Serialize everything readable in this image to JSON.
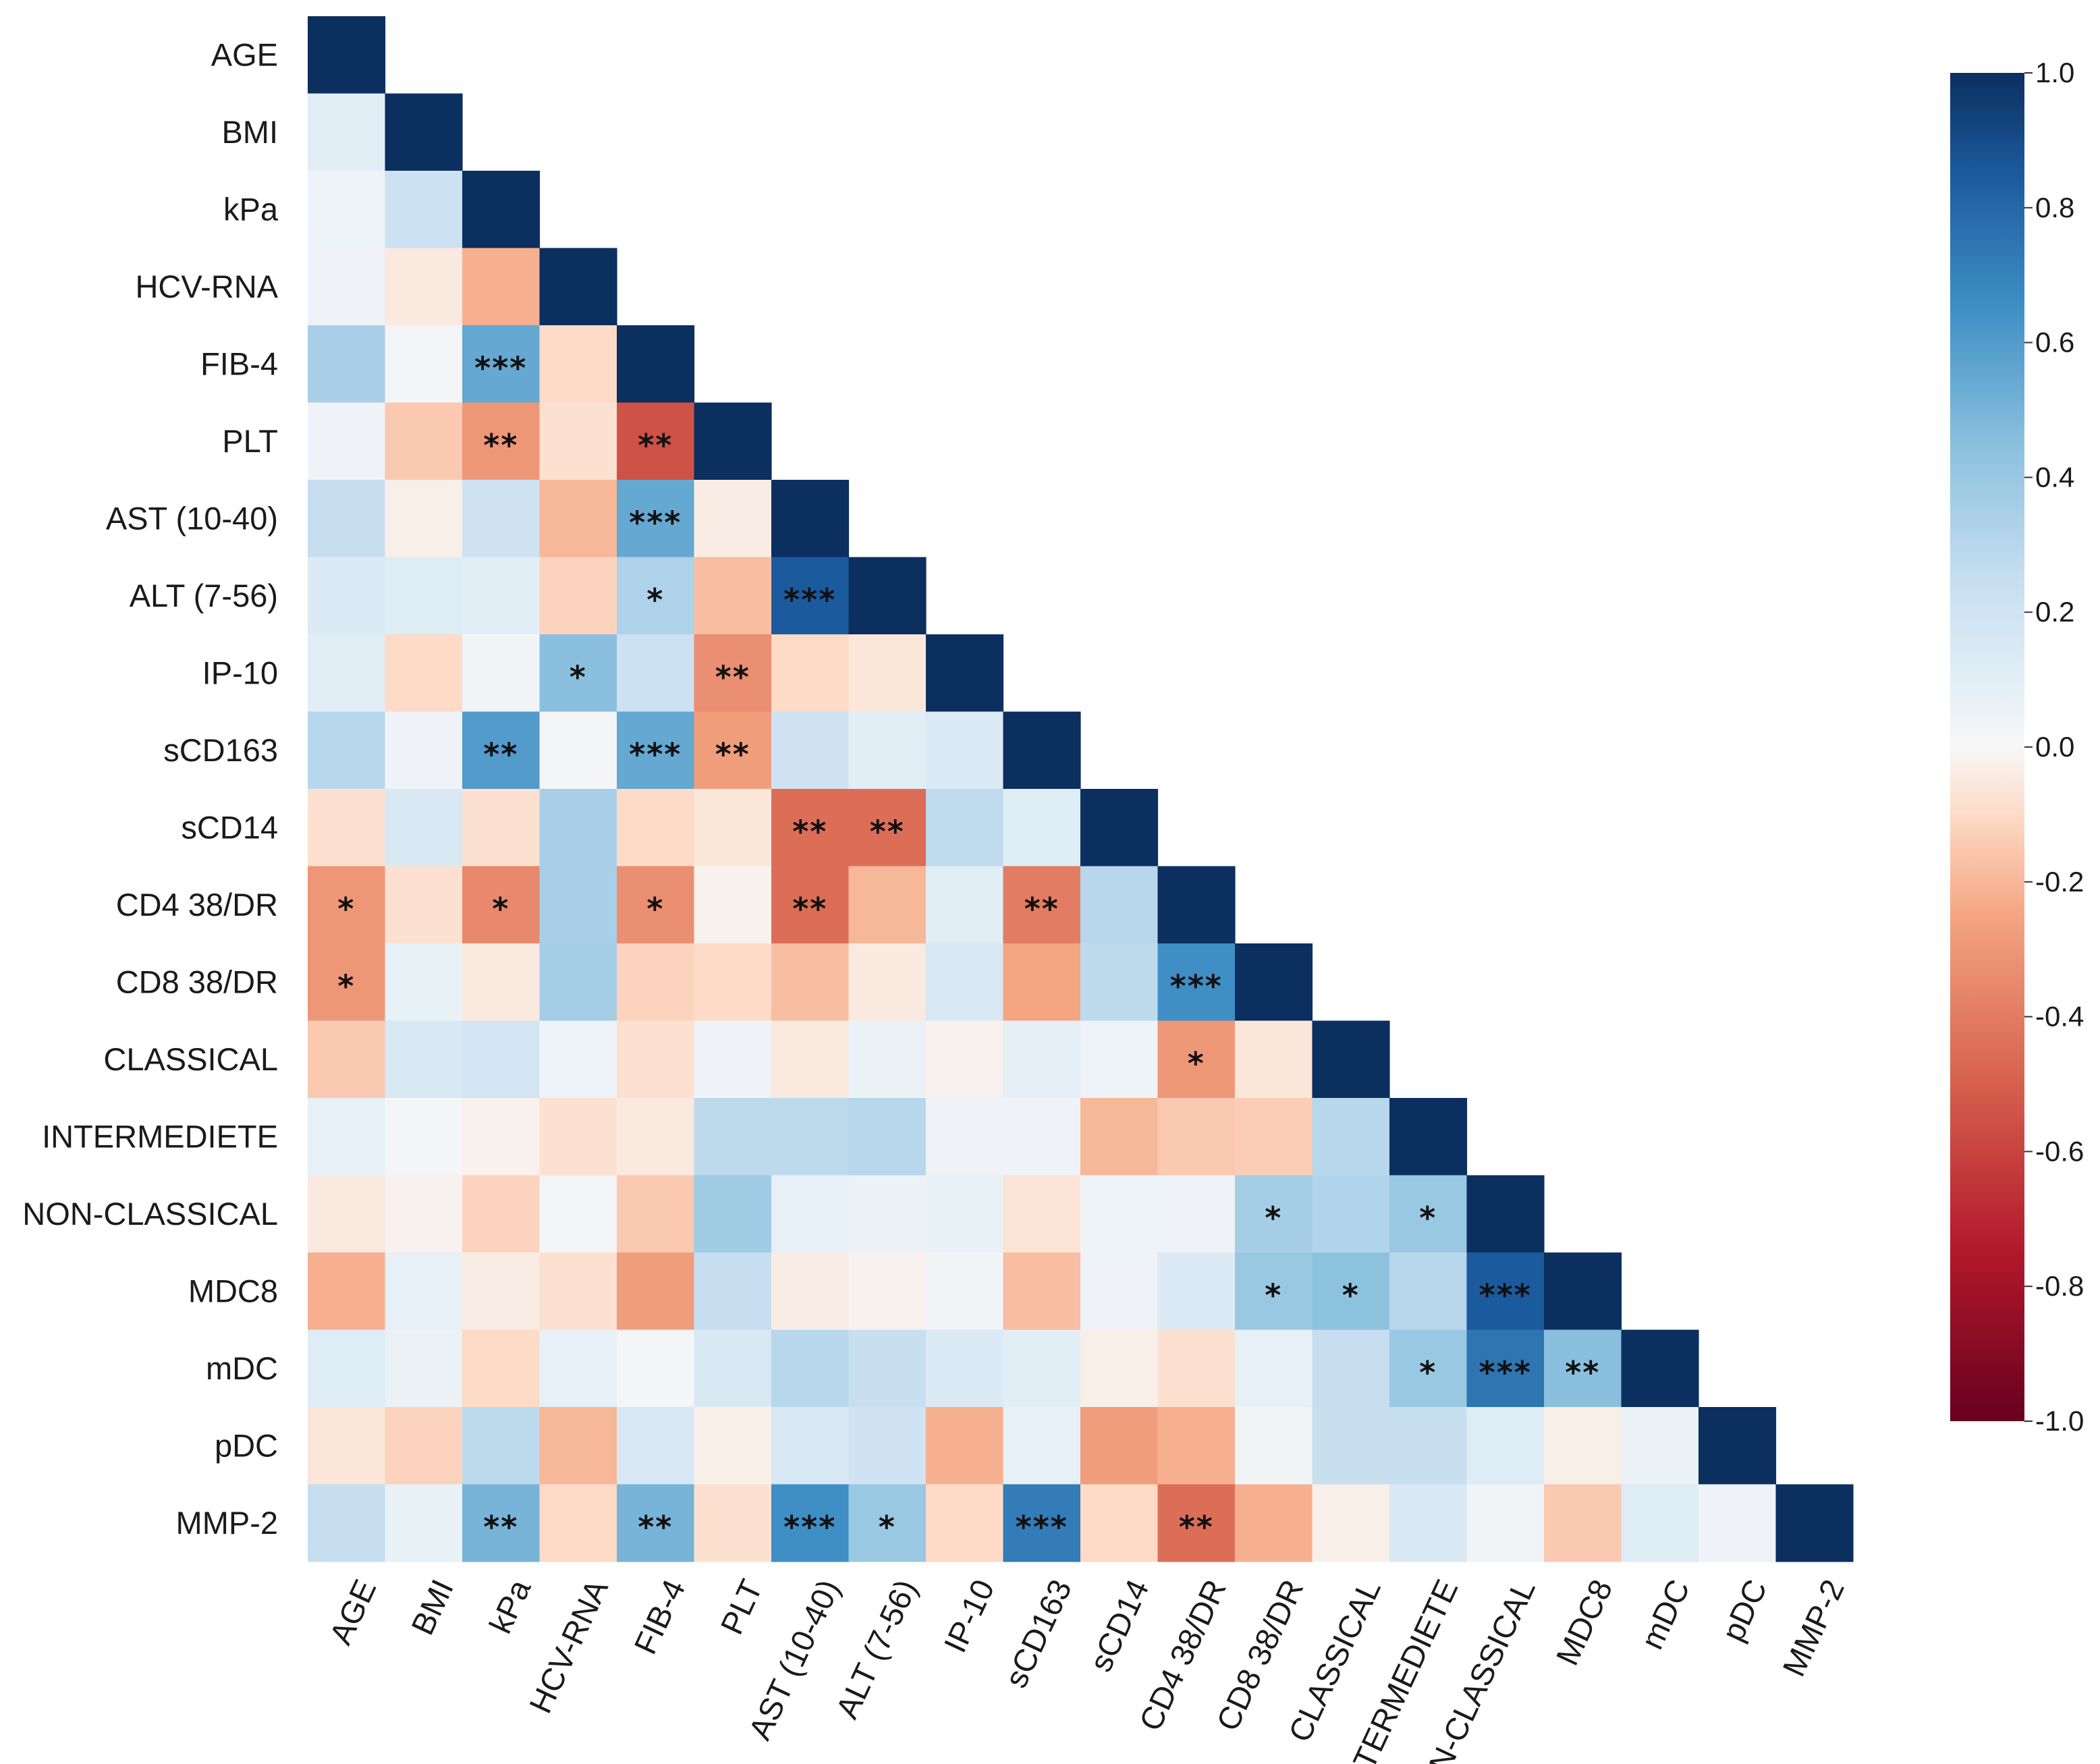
{
  "chart_data": {
    "type": "heatmap",
    "title": "",
    "xlabel": "",
    "ylabel": "",
    "variables": [
      "AGE",
      "BMI",
      "kPa",
      "HCV-RNA",
      "FIB-4",
      "PLT",
      "AST (10-40)",
      "ALT (7-56)",
      "IP-10",
      "sCD163",
      "sCD14",
      "CD4 38/DR",
      "CD8 38/DR",
      "CLASSICAL",
      "INTERMEDIETE",
      "NON-CLASSICAL",
      "MDC8",
      "mDC",
      "pDC",
      "MMP-2"
    ],
    "matrix_shape": "lower-triangle",
    "diagonal_value": 1.0,
    "matrix": [
      [
        1.0
      ],
      [
        0.1,
        1.0
      ],
      [
        0.05,
        0.22,
        1.0
      ],
      [
        0.04,
        -0.05,
        -0.22,
        1.0
      ],
      [
        0.35,
        0.02,
        0.55,
        -0.1,
        1.0
      ],
      [
        0.04,
        -0.15,
        -0.3,
        -0.08,
        -0.55,
        1.0
      ],
      [
        0.25,
        -0.03,
        0.2,
        -0.2,
        0.55,
        -0.04,
        1.0
      ],
      [
        0.14,
        0.12,
        0.1,
        -0.12,
        0.33,
        -0.18,
        0.85,
        1.0
      ],
      [
        0.1,
        -0.1,
        0.03,
        0.45,
        0.22,
        -0.33,
        -0.1,
        -0.06,
        1.0
      ],
      [
        0.3,
        0.04,
        0.6,
        0.02,
        0.55,
        -0.28,
        0.2,
        0.1,
        0.14,
        1.0
      ],
      [
        -0.08,
        0.15,
        -0.08,
        0.35,
        -0.1,
        -0.06,
        -0.45,
        -0.45,
        0.27,
        0.12,
        1.0
      ],
      [
        -0.3,
        -0.08,
        -0.35,
        0.35,
        -0.33,
        -0.02,
        -0.45,
        -0.2,
        0.1,
        -0.4,
        0.3,
        1.0
      ],
      [
        -0.3,
        0.07,
        -0.05,
        0.36,
        -0.12,
        -0.1,
        -0.18,
        -0.05,
        0.16,
        -0.25,
        0.28,
        0.65,
        1.0
      ],
      [
        -0.15,
        0.15,
        0.18,
        0.05,
        -0.08,
        0.04,
        -0.05,
        0.06,
        -0.02,
        0.09,
        0.05,
        -0.3,
        -0.06,
        1.0
      ],
      [
        0.08,
        0.02,
        -0.02,
        -0.08,
        -0.05,
        0.28,
        0.28,
        0.3,
        0.04,
        0.04,
        -0.2,
        -0.15,
        -0.14,
        0.3,
        1.0
      ],
      [
        -0.05,
        -0.02,
        -0.12,
        0.02,
        -0.15,
        0.38,
        0.08,
        0.06,
        0.07,
        -0.07,
        0.05,
        0.04,
        0.36,
        0.32,
        0.4,
        1.0
      ],
      [
        -0.22,
        0.08,
        -0.04,
        -0.08,
        -0.28,
        0.25,
        -0.04,
        -0.02,
        0.03,
        -0.18,
        0.04,
        0.14,
        0.4,
        0.44,
        0.3,
        0.85,
        1.0
      ],
      [
        0.12,
        0.06,
        -0.1,
        0.08,
        0.02,
        0.15,
        0.3,
        0.24,
        0.14,
        0.1,
        -0.03,
        -0.08,
        0.08,
        0.25,
        0.4,
        0.75,
        0.45,
        1.0
      ],
      [
        -0.06,
        -0.12,
        0.28,
        -0.2,
        0.16,
        -0.03,
        0.16,
        0.2,
        -0.22,
        0.08,
        -0.28,
        -0.22,
        0.03,
        0.24,
        0.24,
        0.12,
        -0.03,
        0.06,
        1.0
      ],
      [
        0.25,
        0.07,
        0.5,
        -0.1,
        0.5,
        -0.08,
        0.65,
        0.4,
        -0.1,
        0.72,
        -0.1,
        -0.45,
        -0.22,
        -0.03,
        0.15,
        0.03,
        -0.15,
        0.12,
        0.04,
        1.0
      ]
    ],
    "significance": [
      {
        "row": "FIB-4",
        "col": "kPa",
        "label": "***"
      },
      {
        "row": "PLT",
        "col": "kPa",
        "label": "**"
      },
      {
        "row": "PLT",
        "col": "FIB-4",
        "label": "**"
      },
      {
        "row": "AST (10-40)",
        "col": "FIB-4",
        "label": "***"
      },
      {
        "row": "ALT (7-56)",
        "col": "FIB-4",
        "label": "*"
      },
      {
        "row": "ALT (7-56)",
        "col": "AST (10-40)",
        "label": "***"
      },
      {
        "row": "IP-10",
        "col": "HCV-RNA",
        "label": "*"
      },
      {
        "row": "IP-10",
        "col": "PLT",
        "label": "**"
      },
      {
        "row": "sCD163",
        "col": "kPa",
        "label": "**"
      },
      {
        "row": "sCD163",
        "col": "FIB-4",
        "label": "***"
      },
      {
        "row": "sCD163",
        "col": "PLT",
        "label": "**"
      },
      {
        "row": "sCD14",
        "col": "AST (10-40)",
        "label": "**"
      },
      {
        "row": "sCD14",
        "col": "ALT (7-56)",
        "label": "**"
      },
      {
        "row": "CD4 38/DR",
        "col": "AGE",
        "label": "*"
      },
      {
        "row": "CD4 38/DR",
        "col": "kPa",
        "label": "*"
      },
      {
        "row": "CD4 38/DR",
        "col": "FIB-4",
        "label": "*"
      },
      {
        "row": "CD4 38/DR",
        "col": "AST (10-40)",
        "label": "**"
      },
      {
        "row": "CD4 38/DR",
        "col": "sCD163",
        "label": "**"
      },
      {
        "row": "CD8 38/DR",
        "col": "AGE",
        "label": "*"
      },
      {
        "row": "CD8 38/DR",
        "col": "CD4 38/DR",
        "label": "***"
      },
      {
        "row": "CLASSICAL",
        "col": "CD4 38/DR",
        "label": "*"
      },
      {
        "row": "NON-CLASSICAL",
        "col": "CD8 38/DR",
        "label": "*"
      },
      {
        "row": "NON-CLASSICAL",
        "col": "INTERMEDIETE",
        "label": "*"
      },
      {
        "row": "MDC8",
        "col": "CD8 38/DR",
        "label": "*"
      },
      {
        "row": "MDC8",
        "col": "CLASSICAL",
        "label": "*"
      },
      {
        "row": "MDC8",
        "col": "NON-CLASSICAL",
        "label": "***"
      },
      {
        "row": "mDC",
        "col": "INTERMEDIETE",
        "label": "*"
      },
      {
        "row": "mDC",
        "col": "NON-CLASSICAL",
        "label": "***"
      },
      {
        "row": "mDC",
        "col": "MDC8",
        "label": "**"
      },
      {
        "row": "MMP-2",
        "col": "kPa",
        "label": "**"
      },
      {
        "row": "MMP-2",
        "col": "FIB-4",
        "label": "**"
      },
      {
        "row": "MMP-2",
        "col": "AST (10-40)",
        "label": "***"
      },
      {
        "row": "MMP-2",
        "col": "ALT (7-56)",
        "label": "*"
      },
      {
        "row": "MMP-2",
        "col": "sCD163",
        "label": "***"
      },
      {
        "row": "MMP-2",
        "col": "CD4 38/DR",
        "label": "**"
      }
    ],
    "colorbar": {
      "min": -1.0,
      "max": 1.0,
      "ticks": [
        "1.0",
        "0.8",
        "0.6",
        "0.4",
        "0.2",
        "0.0",
        "-0.2",
        "-0.4",
        "-0.6",
        "-0.8",
        "-1.0"
      ],
      "colormap": "RdBu",
      "color_stops": [
        {
          "v": -1.0,
          "c": "#67001f"
        },
        {
          "v": -0.75,
          "c": "#b2182b"
        },
        {
          "v": -0.5,
          "c": "#d6604d"
        },
        {
          "v": -0.25,
          "c": "#f4a582"
        },
        {
          "v": -0.1,
          "c": "#fddbc7"
        },
        {
          "v": 0.0,
          "c": "#f7f7f7"
        },
        {
          "v": 0.1,
          "c": "#e2eef6"
        },
        {
          "v": 0.25,
          "c": "#c6def0"
        },
        {
          "v": 0.45,
          "c": "#8ac0de"
        },
        {
          "v": 0.65,
          "c": "#3f8fc5"
        },
        {
          "v": 0.85,
          "c": "#1c5a9e"
        },
        {
          "v": 1.0,
          "c": "#0b2f5f"
        }
      ]
    },
    "grid": false,
    "legend": "colorbar-right"
  }
}
